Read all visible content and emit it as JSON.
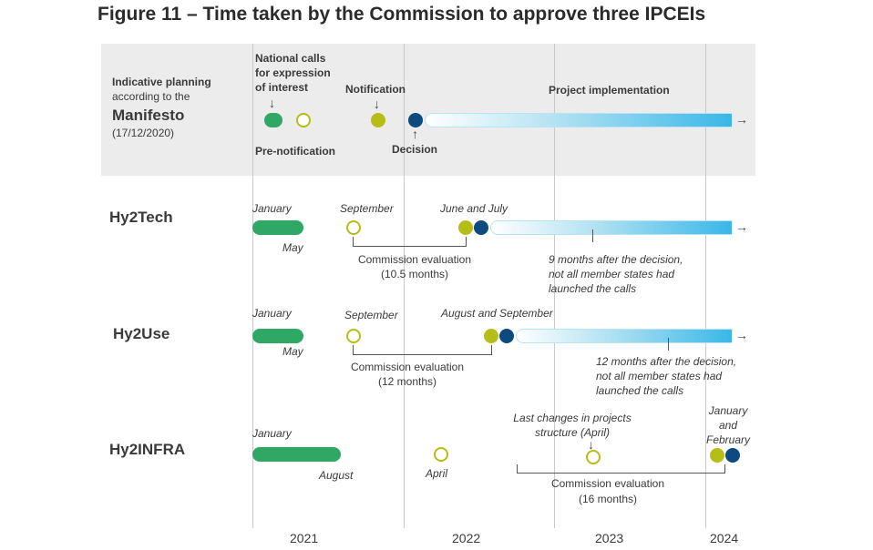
{
  "title": "Figure 11 – Time taken by the Commission to approve three IPCEIs",
  "years": [
    "2021",
    "2022",
    "2023",
    "2024"
  ],
  "manifesto": {
    "label_line1": "Indicative planning",
    "label_line2": "according to the",
    "label_big": "Manifesto",
    "label_date": "(17/12/2020)",
    "calls_line1": "National calls",
    "calls_line2": "for expression",
    "calls_line3": "of interest",
    "prenotification": "Pre-notification",
    "notification": "Notification",
    "decision": "Decision",
    "implementation": "Project implementation"
  },
  "hy2tech": {
    "label": "Hy2Tech",
    "january": "January",
    "may": "May",
    "september": "September",
    "june_july": "June and July",
    "eval_line1": "Commission evaluation",
    "eval_line2": "(10.5 months)",
    "note_line1": "9 months after the decision,",
    "note_line2": "not all member states had",
    "note_line3": "launched the calls"
  },
  "hy2use": {
    "label": "Hy2Use",
    "january": "January",
    "may": "May",
    "september": "September",
    "aug_sep": "August and September",
    "eval_line1": "Commission evaluation",
    "eval_line2": "(12 months)",
    "note_line1": "12 months after the decision,",
    "note_line2": "not all member states had",
    "note_line3": "launched the calls"
  },
  "hy2infra": {
    "label": "Hy2INFRA",
    "january": "January",
    "august": "August",
    "april": "April",
    "changes_line1": "Last changes in projects",
    "changes_line2": "structure (April)",
    "jan_feb_line1": "January",
    "jan_feb_line2": "and",
    "jan_feb_line3": "February",
    "eval_line1": "Commission evaluation",
    "eval_line2": "(16 months)"
  },
  "colors": {
    "green": "#2fa866",
    "olive": "#b6bd16",
    "navy": "#0d4a7f",
    "blue": "#39b7e8",
    "band": "#ececec"
  }
}
